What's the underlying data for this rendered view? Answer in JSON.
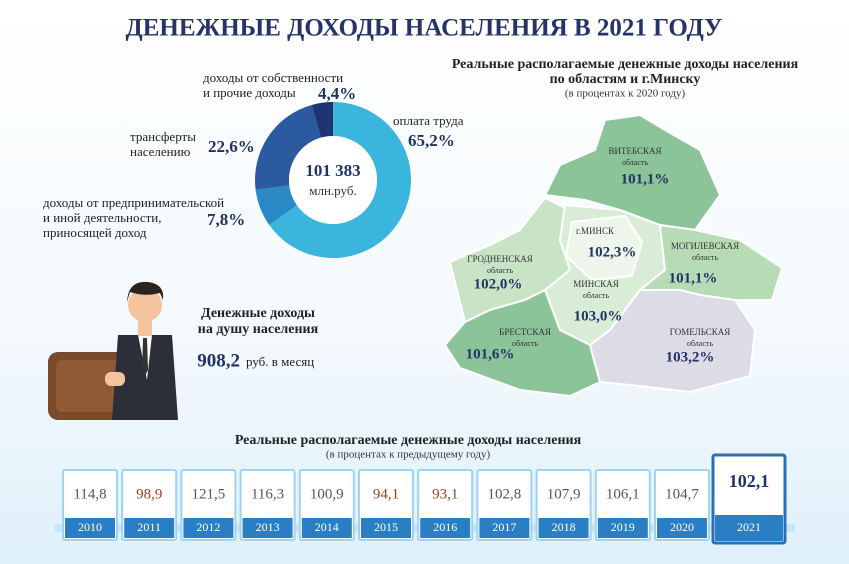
{
  "title": "ДЕНЕЖНЫЕ ДОХОДЫ НАСЕЛЕНИЯ В 2021 ГОДУ",
  "chart_data": {
    "type": "pie",
    "donut": true,
    "center_value": "101 383",
    "center_unit": "млн.руб.",
    "categories": [
      "оплата труда",
      "доходы от предпринимательской\nи иной деятельности,\nприносящей доход",
      "трансферты\nнаселению",
      "доходы от собственности\nи прочие доходы"
    ],
    "values": [
      65.2,
      7.8,
      22.6,
      4.4
    ],
    "value_labels": [
      "65,2%",
      "7,8%",
      "22,6%",
      "4,4%"
    ],
    "colors": [
      "#3ab5de",
      "#2a8ac6",
      "#2b5aa0",
      "#1f3372"
    ]
  },
  "map": {
    "title": [
      "Реальные располагаемые денежные доходы населения",
      "по областям и г.Минску"
    ],
    "subtitle": "(в процентах к 2020 году)",
    "regions": [
      {
        "name": "ВИТЕБСКАЯ",
        "kind": "область",
        "value": "101,1%"
      },
      {
        "name": "г.МИНСК",
        "value": "102,3%"
      },
      {
        "name": "МОГИЛЕВСКАЯ",
        "kind": "область",
        "value": "101,1%"
      },
      {
        "name": "ГРОДНЕНСКАЯ",
        "kind": "область",
        "value": "102,0%"
      },
      {
        "name": "МИНСКАЯ",
        "kind": "область",
        "value": "103,0%"
      },
      {
        "name": "БРЕСТСКАЯ",
        "kind": "область",
        "value": "101,6%"
      },
      {
        "name": "ГОМЕЛЬСКАЯ",
        "kind": "область",
        "value": "103,2%"
      }
    ]
  },
  "per_capita": {
    "title": [
      "Денежные доходы",
      "на душу населения"
    ],
    "value": "908,2",
    "unit": "руб. в месяц"
  },
  "timeline": {
    "title": "Реальные располагаемые денежные доходы населения",
    "subtitle": "(в процентах к предыдущему году)",
    "items": [
      {
        "year": "2010",
        "value": "114,8",
        "color": "#555555"
      },
      {
        "year": "2011",
        "value": "98,9",
        "color": "#9a4318"
      },
      {
        "year": "2012",
        "value": "121,5",
        "color": "#555555"
      },
      {
        "year": "2013",
        "value": "116,3",
        "color": "#555555"
      },
      {
        "year": "2014",
        "value": "100,9",
        "color": "#555555"
      },
      {
        "year": "2015",
        "value": "94,1",
        "color": "#9a4318"
      },
      {
        "year": "2016",
        "value": "93,1",
        "color": "#9a4318"
      },
      {
        "year": "2017",
        "value": "102,8",
        "color": "#555555"
      },
      {
        "year": "2018",
        "value": "107,9",
        "color": "#555555"
      },
      {
        "year": "2019",
        "value": "106,1",
        "color": "#555555"
      },
      {
        "year": "2020",
        "value": "104,7",
        "color": "#555555"
      },
      {
        "year": "2021",
        "value": "102,1",
        "color": "#1f3366"
      }
    ]
  }
}
